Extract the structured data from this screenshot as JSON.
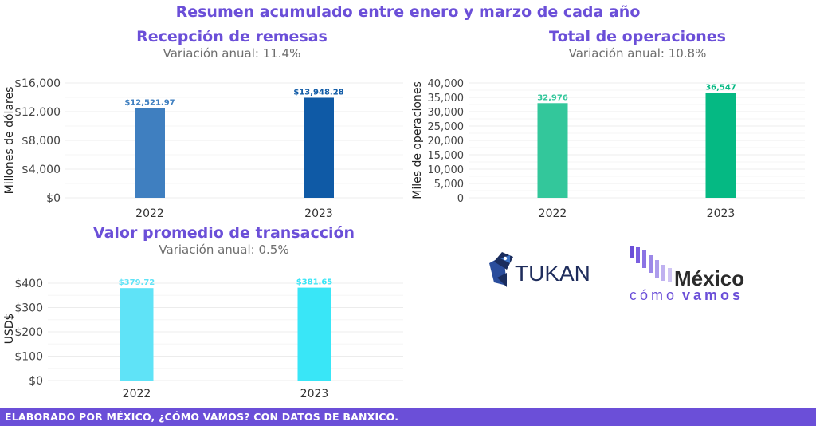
{
  "header": {
    "title": "Resumen acumulado entre enero y marzo de cada año"
  },
  "footer": {
    "text": "ELABORADO POR MÉXICO, ¿CÓMO VAMOS? CON DATOS DE BANXICO."
  },
  "logos": {
    "tukan": {
      "text": "TUKAN",
      "color": "#1f2d5c"
    },
    "mexico_como_vamos": {
      "line1": "México",
      "line2a": "cómo",
      "line2b": "vamos",
      "color": "#6b4fd8"
    }
  },
  "chart_data": [
    {
      "type": "bar",
      "title": "Recepción de remesas",
      "subtitle": "Variación anual: 11.4%",
      "xlabel": "",
      "ylabel": "Millones de dólares",
      "categories": [
        "2022",
        "2023"
      ],
      "values": [
        12521.97,
        13948.28
      ],
      "data_labels": [
        "$12,521.97",
        "$13,948.28"
      ],
      "colors": [
        "#3f7fc0",
        "#0f5aa6"
      ],
      "ylim": [
        0,
        16000
      ],
      "yticks": [
        0,
        4000,
        8000,
        12000,
        16000
      ],
      "ytick_labels": [
        "$0",
        "$4,000",
        "$8,000",
        "$12,000",
        "$16,000"
      ],
      "grid": true
    },
    {
      "type": "bar",
      "title": "Total de operaciones",
      "subtitle": "Variación anual: 10.8%",
      "xlabel": "",
      "ylabel": "Miles de operaciones",
      "categories": [
        "2022",
        "2023"
      ],
      "values": [
        32976,
        36547
      ],
      "data_labels": [
        "32,976",
        "36,547"
      ],
      "colors": [
        "#33c79b",
        "#05b983"
      ],
      "ylim": [
        0,
        40000
      ],
      "yticks": [
        0,
        5000,
        10000,
        15000,
        20000,
        25000,
        30000,
        35000,
        40000
      ],
      "ytick_labels": [
        "0",
        "5,000",
        "10,000",
        "15,000",
        "20,000",
        "25,000",
        "30,000",
        "35,000",
        "40,000"
      ],
      "grid": true
    },
    {
      "type": "bar",
      "title": "Valor promedio de transacción",
      "subtitle": "Variación anual: 0.5%",
      "xlabel": "",
      "ylabel": "USD$",
      "categories": [
        "2022",
        "2023"
      ],
      "values": [
        379.72,
        381.65
      ],
      "data_labels": [
        "$379.72",
        "$381.65"
      ],
      "colors": [
        "#5fe3f7",
        "#39e6f7"
      ],
      "ylim": [
        0,
        400
      ],
      "yticks": [
        0,
        100,
        200,
        300,
        400
      ],
      "ytick_labels": [
        "$0",
        "$100",
        "$200",
        "$300",
        "$400"
      ],
      "grid": true
    }
  ]
}
